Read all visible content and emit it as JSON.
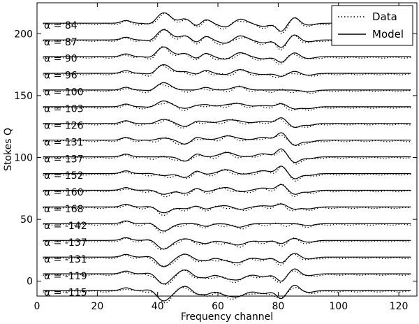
{
  "chart_data": {
    "type": "line",
    "title": "",
    "xlabel": "Frequency channel",
    "ylabel": "Stokes Q",
    "xlim": [
      0,
      126
    ],
    "ylim": [
      -12,
      225
    ],
    "x_ticks": [
      0,
      20,
      40,
      60,
      80,
      100,
      120
    ],
    "y_ticks": [
      0,
      50,
      100,
      150,
      200
    ],
    "grid": false,
    "legend": {
      "position": "top-right",
      "entries": [
        {
          "label": "Data",
          "style": "dotted"
        },
        {
          "label": "Model",
          "style": "solid"
        }
      ]
    },
    "x_range_of_traces": [
      2,
      124
    ],
    "trace_spacing": 13.5,
    "alpha_labels": [
      "α = 84",
      "α = 87",
      "α = 90",
      "α = 96",
      "α = 100",
      "α = 103",
      "α = 126",
      "α = 131",
      "α = 137",
      "α = 152",
      "α = 160",
      "α = 168",
      "α = -142",
      "α = -137",
      "α = -131",
      "α = -119",
      "α = -115"
    ],
    "offsets": [
      208.5,
      195,
      181.5,
      168,
      154.5,
      141,
      127.5,
      114,
      100.5,
      87,
      73.5,
      60,
      46.5,
      33,
      19.5,
      6,
      -7.5
    ],
    "series": [
      {
        "name": "Data",
        "line_style": "dotted",
        "color": "#000000"
      },
      {
        "name": "Model",
        "line_style": "solid",
        "color": "#000000"
      }
    ]
  }
}
